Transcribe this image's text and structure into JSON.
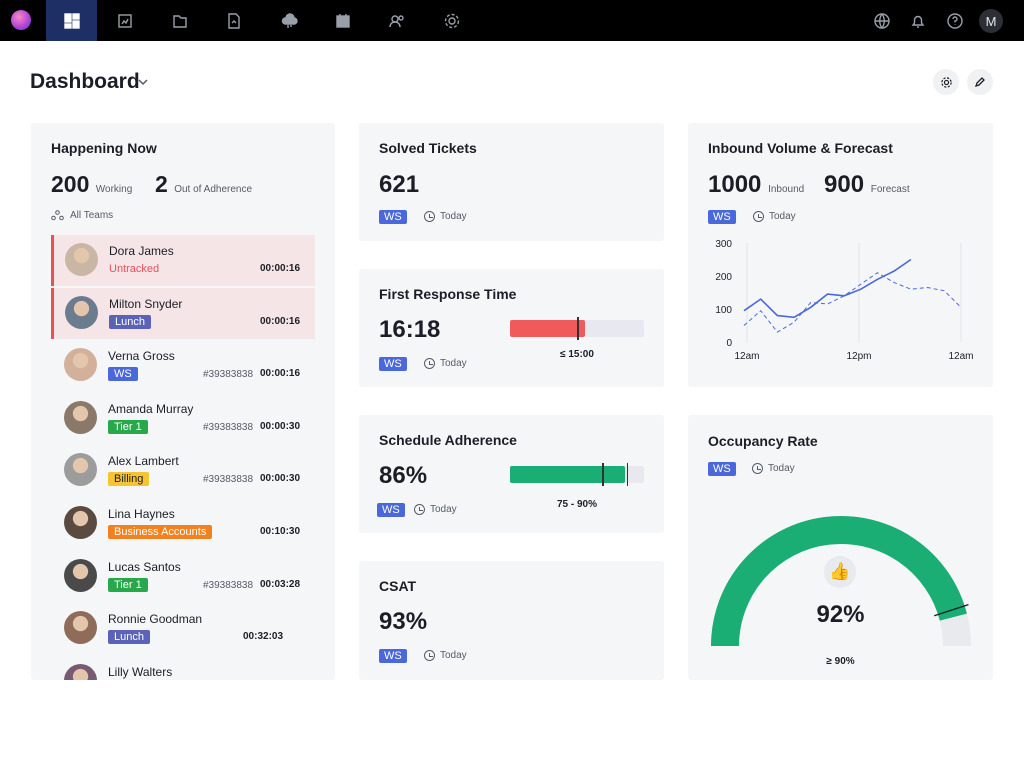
{
  "topbar": {
    "nav": [
      "dashboard-icon",
      "reports-icon",
      "folder-icon",
      "document-icon",
      "cloud-icon",
      "calendar-icon",
      "team-icon",
      "settings-icon"
    ],
    "right": [
      "globe-icon",
      "bell-icon",
      "help-icon"
    ],
    "user_initial": "M"
  },
  "header": {
    "title": "Dashboard"
  },
  "happening": {
    "title": "Happening Now",
    "working_count": "200",
    "working_label": "Working",
    "adherence_count": "2",
    "adherence_label": "Out of Adherence",
    "teams_label": "All Teams",
    "agents": [
      {
        "name": "Dora James",
        "status": "Untracked",
        "id": "",
        "time": "00:00:16",
        "alert": true,
        "status_color": "#e8505b"
      },
      {
        "name": "Milton Snyder",
        "status": "Lunch",
        "id": "",
        "time": "00:00:16",
        "alert": true,
        "status_color": "#5b63b7"
      },
      {
        "name": "Verna Gross",
        "status": "WS",
        "id": "#39383838",
        "time": "00:00:16",
        "alert": false,
        "status_color": "#4a68d9"
      },
      {
        "name": "Amanda Murray",
        "status": "Tier 1",
        "id": "#39383838",
        "time": "00:00:30",
        "alert": false,
        "status_color": "#27a84a"
      },
      {
        "name": "Alex Lambert",
        "status": "Billing",
        "id": "#39383838",
        "time": "00:00:30",
        "alert": false,
        "status_color": "#f6c431"
      },
      {
        "name": "Lina Haynes",
        "status": "Business Accounts",
        "id": "",
        "time": "00:10:30",
        "alert": false,
        "status_color": "#f1821f"
      },
      {
        "name": "Lucas Santos",
        "status": "Tier 1",
        "id": "#39383838",
        "time": "00:03:28",
        "alert": false,
        "status_color": "#27a84a"
      },
      {
        "name": "Ronnie Goodman",
        "status": "Lunch",
        "id": "",
        "time": "00:32:03",
        "alert": false,
        "status_color": "#5b63b7"
      },
      {
        "name": "Lilly Walters",
        "status": "",
        "id": "",
        "time": "",
        "alert": false,
        "status_color": "#5b63b7"
      }
    ]
  },
  "solved": {
    "title": "Solved Tickets",
    "value": "621",
    "badge": "WS",
    "period": "Today"
  },
  "frt": {
    "title": "First Response Time",
    "value": "16:18",
    "badge": "WS",
    "period": "Today",
    "target": "≤ 15:00",
    "fill": 0.56,
    "marker": 0.5,
    "color": "#f15a5a"
  },
  "adherence": {
    "title": "Schedule Adherence",
    "value": "86%",
    "badge": "WS",
    "period": "Today",
    "target": "75 - 90%",
    "fill": 0.86,
    "marker1": 0.69,
    "marker2": 0.87,
    "color": "#1aad74"
  },
  "csat": {
    "title": "CSAT",
    "value": "93%",
    "badge": "WS",
    "period": "Today"
  },
  "inbound": {
    "title": "Inbound Volume & Forecast",
    "inbound_value": "1000",
    "inbound_label": "Inbound",
    "forecast_value": "900",
    "forecast_label": "Forecast",
    "badge": "WS",
    "period": "Today"
  },
  "chart_data": {
    "type": "line",
    "x_ticks": [
      "12am",
      "12pm",
      "12am"
    ],
    "y_ticks": [
      0,
      100,
      200,
      300
    ],
    "ylim": [
      0,
      300
    ],
    "series": [
      {
        "values": [
          95,
          130,
          80,
          75,
          105,
          145,
          140,
          160,
          190,
          215,
          250
        ],
        "style": "solid",
        "color": "#4a68d9"
      },
      {
        "values": [
          50,
          95,
          30,
          60,
          120,
          115,
          140,
          175,
          210,
          180,
          160,
          165,
          155,
          105
        ],
        "style": "dashed",
        "color": "#4a68d9"
      }
    ]
  },
  "occupancy": {
    "title": "Occupancy Rate",
    "value": "92%",
    "badge": "WS",
    "period": "Today",
    "target": "≥ 90%",
    "fill": 0.92,
    "marker": 0.9,
    "color": "#1aad74"
  }
}
